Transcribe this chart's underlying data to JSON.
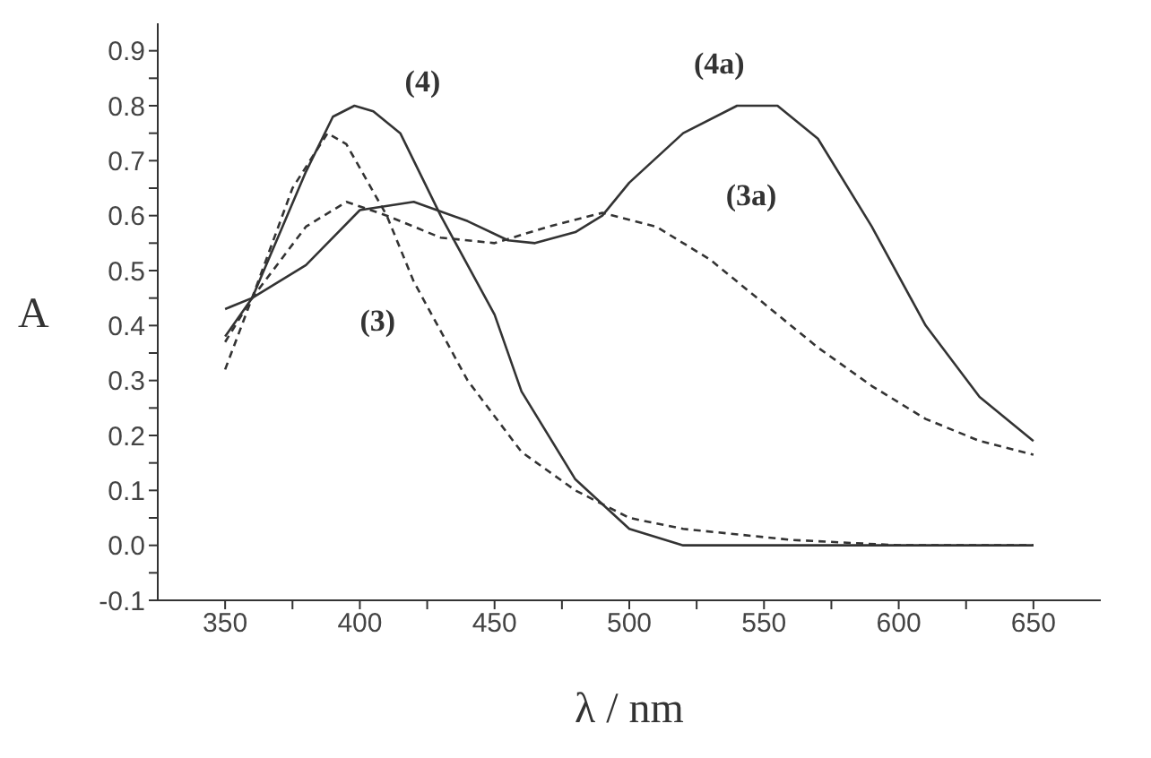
{
  "chart_data": {
    "type": "line",
    "xlabel": "λ / nm",
    "ylabel": "A",
    "xlim": [
      325,
      675
    ],
    "ylim": [
      -0.1,
      0.95
    ],
    "xticks": [
      350,
      {
        "value": 375,
        "label": null
      },
      400,
      {
        "value": 425,
        "label": null
      },
      450,
      {
        "value": 475,
        "label": null
      },
      500,
      {
        "value": 525,
        "label": null
      },
      550,
      {
        "value": 575,
        "label": null
      },
      600,
      {
        "value": 625,
        "label": null
      },
      650
    ],
    "yticks": [
      -0.1,
      {
        "value": -0.05,
        "label": null
      },
      {
        "value": 0,
        "label": "0.0"
      },
      {
        "value": 0.05,
        "label": null
      },
      0.1,
      {
        "value": 0.15,
        "label": null
      },
      0.2,
      {
        "value": 0.25,
        "label": null
      },
      0.3,
      {
        "value": 0.35,
        "label": null
      },
      0.4,
      {
        "value": 0.45,
        "label": null
      },
      0.5,
      {
        "value": 0.55,
        "label": null
      },
      0.6,
      {
        "value": 0.65,
        "label": null
      },
      0.7,
      {
        "value": 0.75,
        "label": null
      },
      0.8,
      {
        "value": 0.85,
        "label": null
      },
      0.9
    ],
    "grid": false,
    "legend": false,
    "marker": "none",
    "series": [
      {
        "name": "(4)",
        "color": "#333333",
        "line_style": "solid",
        "x": [
          350,
          360,
          380,
          390,
          398,
          405,
          415,
          430,
          450,
          460,
          480,
          500,
          520,
          650
        ],
        "values": [
          0.38,
          0.45,
          0.68,
          0.78,
          0.8,
          0.79,
          0.75,
          0.6,
          0.42,
          0.28,
          0.12,
          0.03,
          0.0,
          0.0
        ]
      },
      {
        "name": "(3)",
        "color": "#333333",
        "line_style": "dashed",
        "x": [
          350,
          360,
          375,
          388,
          395,
          410,
          420,
          440,
          460,
          480,
          500,
          520,
          560,
          600,
          650
        ],
        "values": [
          0.32,
          0.45,
          0.65,
          0.75,
          0.73,
          0.6,
          0.48,
          0.3,
          0.17,
          0.1,
          0.05,
          0.03,
          0.01,
          0.0,
          0.0
        ]
      },
      {
        "name": "(4a)",
        "color": "#333333",
        "line_style": "solid",
        "x": [
          350,
          360,
          380,
          400,
          420,
          440,
          455,
          465,
          480,
          490,
          500,
          520,
          540,
          555,
          570,
          590,
          610,
          630,
          650
        ],
        "values": [
          0.43,
          0.45,
          0.51,
          0.61,
          0.625,
          0.59,
          0.555,
          0.55,
          0.57,
          0.6,
          0.66,
          0.75,
          0.8,
          0.8,
          0.74,
          0.58,
          0.4,
          0.27,
          0.19
        ]
      },
      {
        "name": "(3a)",
        "color": "#333333",
        "line_style": "dashed",
        "x": [
          350,
          360,
          380,
          395,
          410,
          430,
          450,
          470,
          490,
          510,
          530,
          550,
          570,
          590,
          610,
          630,
          650
        ],
        "values": [
          0.37,
          0.45,
          0.58,
          0.625,
          0.6,
          0.56,
          0.55,
          0.58,
          0.605,
          0.58,
          0.52,
          0.44,
          0.36,
          0.29,
          0.23,
          0.19,
          0.165
        ]
      }
    ]
  }
}
